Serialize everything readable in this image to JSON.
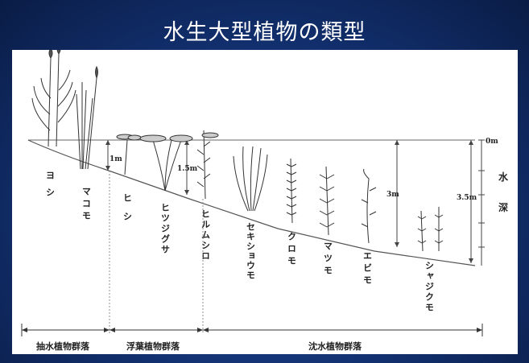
{
  "title": "水生大型植物の類型",
  "plants": [
    {
      "name": "ヨシ"
    },
    {
      "name": "マコモ"
    },
    {
      "name": "ヒシ"
    },
    {
      "name": "ヒツジグサ"
    },
    {
      "name": "ヒルムシロ"
    },
    {
      "name": "セキショウモ"
    },
    {
      "name": "クロモ"
    },
    {
      "name": "マツモ"
    },
    {
      "name": "エビモ"
    },
    {
      "name": "シャジクモ"
    }
  ],
  "depths": {
    "d1": "1m",
    "d15": "1.5m",
    "d3": "3m",
    "d35": "3.5m",
    "zero": "0m"
  },
  "depth_label": "水深",
  "groups": {
    "emergent": "抽水植物群落",
    "floating": "浮葉植物群落",
    "submerged": "沈水植物群落"
  },
  "colors": {
    "background": "#12306f",
    "panel": "#ffffff",
    "ink": "#333333"
  }
}
